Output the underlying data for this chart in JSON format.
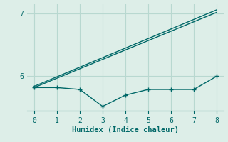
{
  "xlabel": "Humidex (Indice chaleur)",
  "bg_color": "#ddeee8",
  "line_color": "#006868",
  "grid_color": "#b8d8d0",
  "axis_color": "#006868",
  "xlim": [
    -0.3,
    8.3
  ],
  "ylim": [
    5.45,
    7.15
  ],
  "yticks": [
    6,
    7
  ],
  "xticks": [
    0,
    1,
    2,
    3,
    4,
    5,
    6,
    7,
    8
  ],
  "line1_x": [
    0,
    8
  ],
  "line1_y": [
    5.82,
    7.02
  ],
  "line2_x": [
    0,
    8
  ],
  "line2_y": [
    5.84,
    7.06
  ],
  "data_x": [
    0,
    1,
    2,
    3,
    4,
    5,
    6,
    7,
    8
  ],
  "data_y": [
    5.82,
    5.82,
    5.79,
    5.52,
    5.7,
    5.79,
    5.79,
    5.79,
    6.0
  ]
}
